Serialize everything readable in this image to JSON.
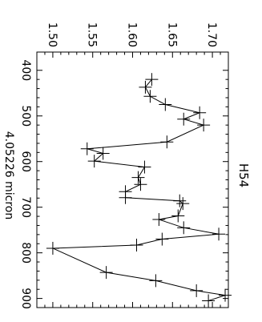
{
  "chart_data": {
    "type": "line",
    "title": "H54",
    "xlabel": "4.05226 micron",
    "ylabel": "",
    "rotation_deg": 90,
    "xlim": [
      360,
      920
    ],
    "ylim": [
      1.48,
      1.72
    ],
    "x_ticks": [
      400,
      500,
      600,
      700,
      800,
      900
    ],
    "y_ticks": [
      1.5,
      1.55,
      1.6,
      1.65,
      1.7
    ],
    "y_tick_labels": [
      "1.50",
      "1.55",
      "1.60",
      "1.65",
      "1.70"
    ],
    "grid": false,
    "legend": "none",
    "marker": "plus",
    "series": [
      {
        "x": [
          420,
          437,
          457,
          475,
          493,
          507,
          520,
          557,
          572,
          582,
          599,
          612,
          635,
          650,
          666,
          679,
          686,
          692,
          719,
          727,
          745,
          759,
          770,
          783,
          790,
          843,
          861,
          883,
          893,
          905
        ],
        "y": [
          1.624,
          1.616,
          1.622,
          1.641,
          1.684,
          1.664,
          1.689,
          1.643,
          1.543,
          1.563,
          1.552,
          1.615,
          1.607,
          1.61,
          1.591,
          1.591,
          1.659,
          1.663,
          1.657,
          1.633,
          1.664,
          1.708,
          1.637,
          1.605,
          1.5,
          1.567,
          1.629,
          1.68,
          1.716,
          1.695
        ]
      }
    ]
  }
}
